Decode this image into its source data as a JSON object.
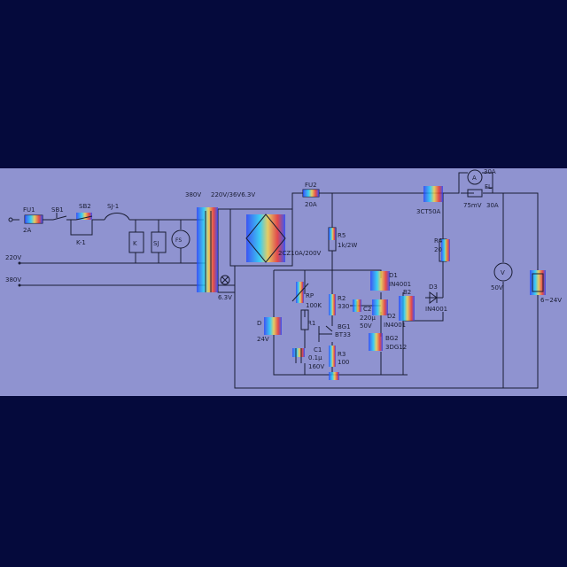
{
  "diagram": {
    "background": "#050a3c",
    "panel_color": "#8f93d0",
    "labels": {
      "in_220v": "220V",
      "in_380v": "380V",
      "tr_in_380v": "380V",
      "fu1": "FU1",
      "fu1_val": "2A",
      "sb1": "SB1",
      "sb2": "SB2",
      "sj1": "SJ-1",
      "k1": "K-1",
      "k": "K",
      "sj": "SJ",
      "fs": "FS",
      "tr_rating": "220V/36V6.3V",
      "lamp_v": "6.3V",
      "fu2": "FU2",
      "fu2_val": "20A",
      "bridge": "2CZ10A/200V",
      "r5": "R5",
      "r5_val": "1k/2W",
      "rp": "RP",
      "rp_val": "100K",
      "r1": "R1",
      "dz": "D",
      "dz_val": "24V",
      "r2": "R2",
      "r2_val": "330",
      "c2": "C2",
      "c2_val": "220μ",
      "c2_v": "50V",
      "bg1": "BG1",
      "bg1_val": "BT33",
      "c1": "C1",
      "c1_val": "0.1μ",
      "c1_v": "160V",
      "r3": "R3",
      "r3_val": "100",
      "d1": "D1",
      "d1_val": "IN4001",
      "d2": "D2",
      "d2_val": "IN4001",
      "b2": "B2",
      "bg2": "BG2",
      "bg2_val": "3DG12",
      "d3": "D3",
      "d3_val": "IN4001",
      "r4": "R4",
      "r4_val": "20",
      "scr": "3CT50A",
      "ammeter_range": "30A",
      "ammeter_sym": "A",
      "fl": "FL",
      "fl_shunt": "75mV",
      "fl_val": "30A",
      "voltmeter_sym": "V",
      "voltmeter_range": "50V",
      "output": "6~24V"
    }
  }
}
